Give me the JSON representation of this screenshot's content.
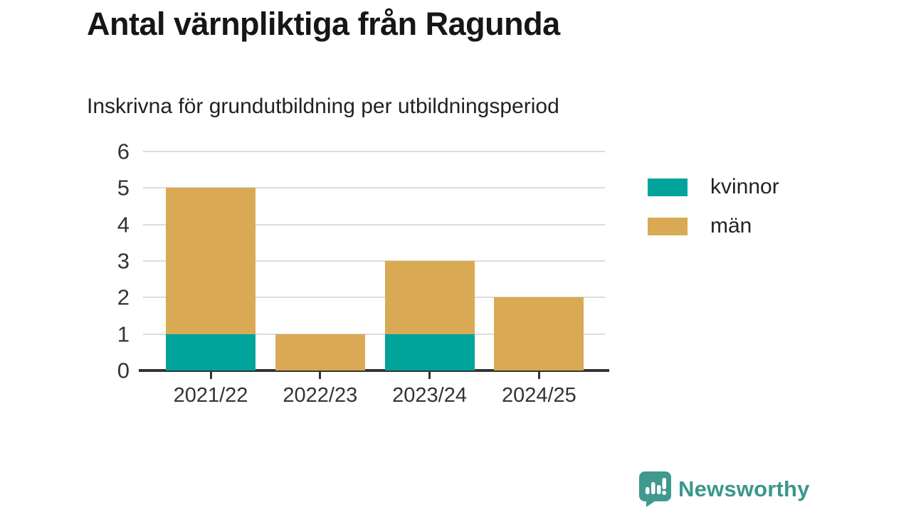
{
  "title": "Antal värnpliktiga från Ragunda",
  "subtitle": "Inskrivna för grundutbildning per utbildningsperiod",
  "legend": {
    "items": [
      {
        "label": "kvinnor",
        "color": "#00a49a"
      },
      {
        "label": "män",
        "color": "#d9aa53"
      }
    ]
  },
  "colors": {
    "kvinnor": "#00a49a",
    "man": "#d9aa53",
    "axis": "#333333",
    "grid": "#dcdcdc",
    "brand": "#3f998e"
  },
  "footer": {
    "brand": "Newsworthy",
    "logo_icon": "newsworthy-speech-bubble-chart-icon"
  },
  "chart_data": {
    "type": "bar",
    "stacked": true,
    "title": "Antal värnpliktiga från Ragunda",
    "subtitle": "Inskrivna för grundutbildning per utbildningsperiod",
    "categories": [
      "2021/22",
      "2022/23",
      "2023/24",
      "2024/25"
    ],
    "series": [
      {
        "name": "kvinnor",
        "color": "#00a49a",
        "values": [
          1,
          0,
          1,
          0
        ]
      },
      {
        "name": "män",
        "color": "#d9aa53",
        "values": [
          4,
          1,
          2,
          2
        ]
      }
    ],
    "totals": [
      5,
      1,
      3,
      2
    ],
    "xlabel": "",
    "ylabel": "",
    "ylim": [
      0,
      6
    ],
    "yticks": [
      0,
      1,
      2,
      3,
      4,
      5,
      6
    ],
    "grid": true,
    "legend_position": "right"
  }
}
